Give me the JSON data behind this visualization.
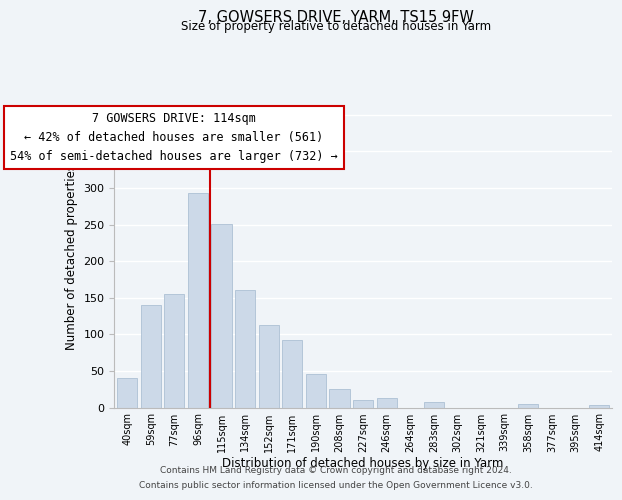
{
  "title": "7, GOWSERS DRIVE, YARM, TS15 9FW",
  "subtitle": "Size of property relative to detached houses in Yarm",
  "xlabel": "Distribution of detached houses by size in Yarm",
  "ylabel": "Number of detached properties",
  "bar_color": "#ccd9e8",
  "bar_edge_color": "#adc0d4",
  "categories": [
    "40sqm",
    "59sqm",
    "77sqm",
    "96sqm",
    "115sqm",
    "134sqm",
    "152sqm",
    "171sqm",
    "190sqm",
    "208sqm",
    "227sqm",
    "246sqm",
    "264sqm",
    "283sqm",
    "302sqm",
    "321sqm",
    "339sqm",
    "358sqm",
    "377sqm",
    "395sqm",
    "414sqm"
  ],
  "values": [
    40,
    140,
    155,
    293,
    251,
    161,
    113,
    92,
    46,
    25,
    10,
    13,
    0,
    8,
    0,
    0,
    0,
    5,
    0,
    0,
    3
  ],
  "ylim": [
    0,
    410
  ],
  "yticks": [
    0,
    50,
    100,
    150,
    200,
    250,
    300,
    350,
    400
  ],
  "vline_idx": 4,
  "vline_color": "#cc0000",
  "annotation_title": "7 GOWSERS DRIVE: 114sqm",
  "annotation_line1": "← 42% of detached houses are smaller (561)",
  "annotation_line2": "54% of semi-detached houses are larger (732) →",
  "footer_line1": "Contains HM Land Registry data © Crown copyright and database right 2024.",
  "footer_line2": "Contains public sector information licensed under the Open Government Licence v3.0.",
  "background_color": "#f0f4f8",
  "grid_color": "#ffffff"
}
